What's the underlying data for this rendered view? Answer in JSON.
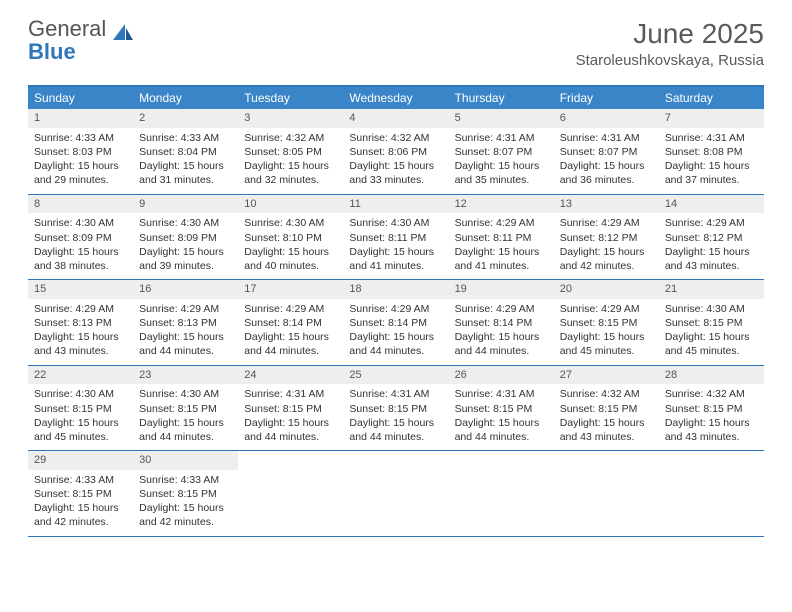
{
  "logo": {
    "text1": "General",
    "text2": "Blue",
    "icon_color": "#2f77ba",
    "text1_color": "#555555"
  },
  "title": "June 2025",
  "location": "Staroleushkovskaya, Russia",
  "header_bg": "#3a85c8",
  "header_text_color": "#ffffff",
  "border_color": "#2f77ba",
  "daynum_bg": "#eeeeee",
  "text_color": "#333333",
  "day_headers": [
    "Sunday",
    "Monday",
    "Tuesday",
    "Wednesday",
    "Thursday",
    "Friday",
    "Saturday"
  ],
  "weeks": [
    [
      {
        "n": "1",
        "sr": "4:33 AM",
        "ss": "8:03 PM",
        "dl": "15 hours and 29 minutes."
      },
      {
        "n": "2",
        "sr": "4:33 AM",
        "ss": "8:04 PM",
        "dl": "15 hours and 31 minutes."
      },
      {
        "n": "3",
        "sr": "4:32 AM",
        "ss": "8:05 PM",
        "dl": "15 hours and 32 minutes."
      },
      {
        "n": "4",
        "sr": "4:32 AM",
        "ss": "8:06 PM",
        "dl": "15 hours and 33 minutes."
      },
      {
        "n": "5",
        "sr": "4:31 AM",
        "ss": "8:07 PM",
        "dl": "15 hours and 35 minutes."
      },
      {
        "n": "6",
        "sr": "4:31 AM",
        "ss": "8:07 PM",
        "dl": "15 hours and 36 minutes."
      },
      {
        "n": "7",
        "sr": "4:31 AM",
        "ss": "8:08 PM",
        "dl": "15 hours and 37 minutes."
      }
    ],
    [
      {
        "n": "8",
        "sr": "4:30 AM",
        "ss": "8:09 PM",
        "dl": "15 hours and 38 minutes."
      },
      {
        "n": "9",
        "sr": "4:30 AM",
        "ss": "8:09 PM",
        "dl": "15 hours and 39 minutes."
      },
      {
        "n": "10",
        "sr": "4:30 AM",
        "ss": "8:10 PM",
        "dl": "15 hours and 40 minutes."
      },
      {
        "n": "11",
        "sr": "4:30 AM",
        "ss": "8:11 PM",
        "dl": "15 hours and 41 minutes."
      },
      {
        "n": "12",
        "sr": "4:29 AM",
        "ss": "8:11 PM",
        "dl": "15 hours and 41 minutes."
      },
      {
        "n": "13",
        "sr": "4:29 AM",
        "ss": "8:12 PM",
        "dl": "15 hours and 42 minutes."
      },
      {
        "n": "14",
        "sr": "4:29 AM",
        "ss": "8:12 PM",
        "dl": "15 hours and 43 minutes."
      }
    ],
    [
      {
        "n": "15",
        "sr": "4:29 AM",
        "ss": "8:13 PM",
        "dl": "15 hours and 43 minutes."
      },
      {
        "n": "16",
        "sr": "4:29 AM",
        "ss": "8:13 PM",
        "dl": "15 hours and 44 minutes."
      },
      {
        "n": "17",
        "sr": "4:29 AM",
        "ss": "8:14 PM",
        "dl": "15 hours and 44 minutes."
      },
      {
        "n": "18",
        "sr": "4:29 AM",
        "ss": "8:14 PM",
        "dl": "15 hours and 44 minutes."
      },
      {
        "n": "19",
        "sr": "4:29 AM",
        "ss": "8:14 PM",
        "dl": "15 hours and 44 minutes."
      },
      {
        "n": "20",
        "sr": "4:29 AM",
        "ss": "8:15 PM",
        "dl": "15 hours and 45 minutes."
      },
      {
        "n": "21",
        "sr": "4:30 AM",
        "ss": "8:15 PM",
        "dl": "15 hours and 45 minutes."
      }
    ],
    [
      {
        "n": "22",
        "sr": "4:30 AM",
        "ss": "8:15 PM",
        "dl": "15 hours and 45 minutes."
      },
      {
        "n": "23",
        "sr": "4:30 AM",
        "ss": "8:15 PM",
        "dl": "15 hours and 44 minutes."
      },
      {
        "n": "24",
        "sr": "4:31 AM",
        "ss": "8:15 PM",
        "dl": "15 hours and 44 minutes."
      },
      {
        "n": "25",
        "sr": "4:31 AM",
        "ss": "8:15 PM",
        "dl": "15 hours and 44 minutes."
      },
      {
        "n": "26",
        "sr": "4:31 AM",
        "ss": "8:15 PM",
        "dl": "15 hours and 44 minutes."
      },
      {
        "n": "27",
        "sr": "4:32 AM",
        "ss": "8:15 PM",
        "dl": "15 hours and 43 minutes."
      },
      {
        "n": "28",
        "sr": "4:32 AM",
        "ss": "8:15 PM",
        "dl": "15 hours and 43 minutes."
      }
    ],
    [
      {
        "n": "29",
        "sr": "4:33 AM",
        "ss": "8:15 PM",
        "dl": "15 hours and 42 minutes."
      },
      {
        "n": "30",
        "sr": "4:33 AM",
        "ss": "8:15 PM",
        "dl": "15 hours and 42 minutes."
      },
      null,
      null,
      null,
      null,
      null
    ]
  ],
  "labels": {
    "sunrise": "Sunrise: ",
    "sunset": "Sunset: ",
    "daylight": "Daylight: "
  }
}
